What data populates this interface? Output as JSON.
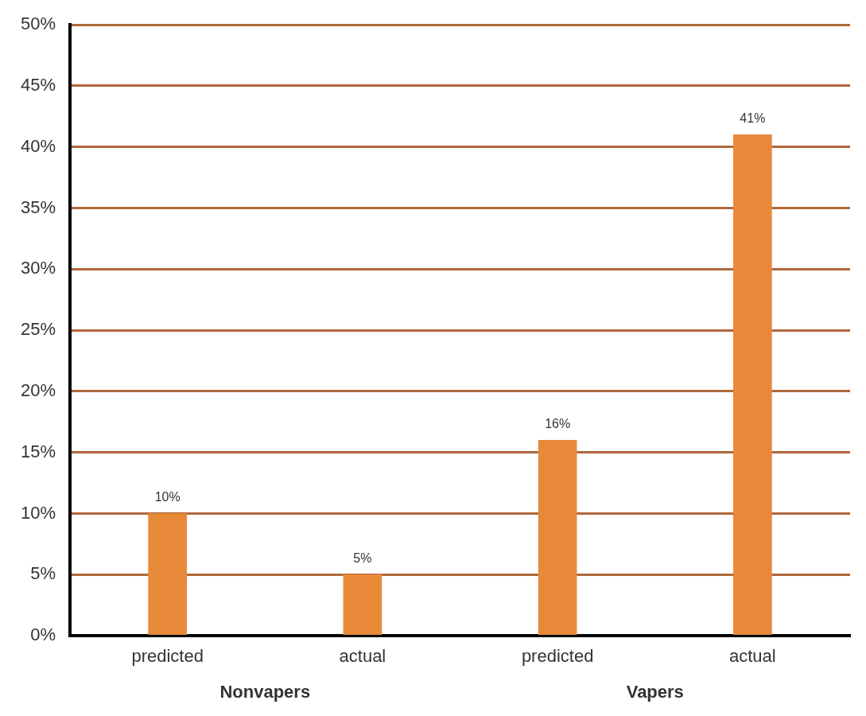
{
  "chart_data": {
    "type": "bar",
    "categories": [
      "predicted",
      "actual",
      "predicted",
      "actual"
    ],
    "groups": [
      "Nonvapers",
      "Vapers"
    ],
    "values": [
      10,
      5,
      16,
      41
    ],
    "value_labels": [
      "10%",
      "5%",
      "16%",
      "41%"
    ],
    "color": "#e8893a",
    "ylim": [
      0,
      50
    ],
    "yticks": [
      {
        "value": 0,
        "label": "0%"
      },
      {
        "value": 5,
        "label": "5%"
      },
      {
        "value": 10,
        "label": "10%"
      },
      {
        "value": 15,
        "label": "15%"
      },
      {
        "value": 20,
        "label": "20%"
      },
      {
        "value": 25,
        "label": "25%"
      },
      {
        "value": 30,
        "label": "30%"
      },
      {
        "value": 35,
        "label": "35%"
      },
      {
        "value": 40,
        "label": "40%"
      },
      {
        "value": 45,
        "label": "45%"
      },
      {
        "value": 50,
        "label": "50%"
      }
    ],
    "grid": true,
    "data_labels": true
  }
}
